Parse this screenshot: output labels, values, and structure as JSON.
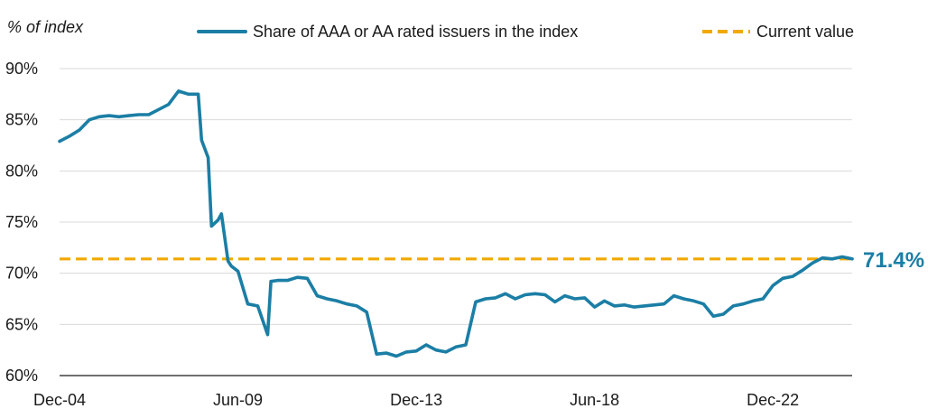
{
  "chart_data": {
    "type": "line",
    "ylabel": "% of index",
    "ylim": [
      60,
      90
    ],
    "yticks": [
      {
        "value": 90,
        "label": "90%"
      },
      {
        "value": 85,
        "label": "85%"
      },
      {
        "value": 80,
        "label": "80%"
      },
      {
        "value": 75,
        "label": "75%"
      },
      {
        "value": 70,
        "label": "70%"
      },
      {
        "value": 65,
        "label": "65%"
      },
      {
        "value": 60,
        "label": "60%"
      }
    ],
    "xlim": [
      "2004-12",
      "2024-12"
    ],
    "xticks": [
      {
        "value": "2004-12",
        "label": "Dec-04"
      },
      {
        "value": "2009-06",
        "label": "Jun-09"
      },
      {
        "value": "2013-12",
        "label": "Dec-13"
      },
      {
        "value": "2018-06",
        "label": "Jun-18"
      },
      {
        "value": "2022-12",
        "label": "Dec-22"
      }
    ],
    "grid": "horizontal",
    "legend": "top",
    "series": [
      {
        "name": "Share of AAA or AA rated issuers in the index",
        "color": "#1b7ea5",
        "style": "solid",
        "x": [
          "2004-12",
          "2005-03",
          "2005-06",
          "2005-09",
          "2005-12",
          "2006-03",
          "2006-06",
          "2006-09",
          "2006-12",
          "2007-03",
          "2007-06",
          "2007-09",
          "2007-12",
          "2008-03",
          "2008-06",
          "2008-07",
          "2008-09",
          "2008-10",
          "2008-12",
          "2009-01",
          "2009-03",
          "2009-04",
          "2009-06",
          "2009-09",
          "2009-12",
          "2010-03",
          "2010-04",
          "2010-06",
          "2010-09",
          "2010-12",
          "2011-03",
          "2011-06",
          "2011-09",
          "2011-12",
          "2012-03",
          "2012-06",
          "2012-09",
          "2012-12",
          "2013-03",
          "2013-06",
          "2013-09",
          "2013-12",
          "2014-03",
          "2014-06",
          "2014-09",
          "2014-12",
          "2015-03",
          "2015-06",
          "2015-09",
          "2015-12",
          "2016-03",
          "2016-06",
          "2016-09",
          "2016-12",
          "2017-03",
          "2017-06",
          "2017-09",
          "2017-12",
          "2018-03",
          "2018-06",
          "2018-09",
          "2018-12",
          "2019-03",
          "2019-06",
          "2019-09",
          "2019-12",
          "2020-03",
          "2020-06",
          "2020-09",
          "2020-12",
          "2021-03",
          "2021-06",
          "2021-09",
          "2021-12",
          "2022-03",
          "2022-06",
          "2022-09",
          "2022-12",
          "2023-03",
          "2023-06",
          "2023-09",
          "2023-12",
          "2024-03",
          "2024-06",
          "2024-09",
          "2024-12"
        ],
        "values": [
          82.9,
          83.4,
          84.0,
          85.0,
          85.3,
          85.4,
          85.3,
          85.4,
          85.5,
          85.5,
          86.0,
          86.5,
          87.8,
          87.5,
          87.5,
          83.0,
          81.3,
          74.6,
          75.2,
          75.8,
          71.2,
          70.7,
          70.2,
          67.0,
          66.8,
          64.0,
          69.2,
          69.3,
          69.3,
          69.6,
          69.5,
          67.8,
          67.5,
          67.3,
          67.0,
          66.8,
          66.2,
          62.1,
          62.2,
          61.9,
          62.3,
          62.4,
          63.0,
          62.5,
          62.3,
          62.8,
          63.0,
          67.2,
          67.5,
          67.6,
          68.0,
          67.5,
          67.9,
          68.0,
          67.9,
          67.2,
          67.8,
          67.5,
          67.6,
          66.7,
          67.3,
          66.8,
          66.9,
          66.7,
          66.8,
          66.9,
          67.0,
          67.8,
          67.5,
          67.3,
          67.0,
          65.8,
          66.0,
          66.8,
          67.0,
          67.3,
          67.5,
          68.8,
          69.5,
          69.7,
          70.3,
          71.0,
          71.5,
          71.4,
          71.6,
          71.4
        ]
      },
      {
        "name": "Current value",
        "color": "#f2a900",
        "style": "dashed",
        "x": [
          "2004-12",
          "2024-12"
        ],
        "values": [
          71.4,
          71.4
        ]
      }
    ],
    "annotations": [
      {
        "text": "71.4%",
        "value": 71.4,
        "color": "#1b7ea5"
      }
    ]
  }
}
